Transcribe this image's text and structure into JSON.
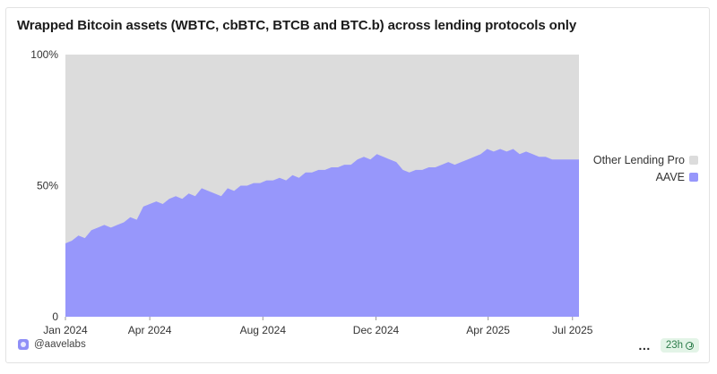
{
  "chart_data": {
    "type": "area",
    "stacking": "percent",
    "title": "Wrapped Bitcoin assets (WBTC, cbBTC, BTCB and BTC.b) across lending protocols only",
    "xlabel": "",
    "ylabel": "",
    "x_ticks": [
      "Jan 2024",
      "Apr 2024",
      "Aug 2024",
      "Dec 2024",
      "Apr 2025",
      "Jul 2025"
    ],
    "x_tick_dates": [
      "2024-01-01",
      "2024-04-01",
      "2024-08-01",
      "2024-12-01",
      "2025-04-01",
      "2025-07-01"
    ],
    "x_range": [
      "2024-01-01",
      "2025-07-08"
    ],
    "y_ticks": [
      "0",
      "50%",
      "100%"
    ],
    "y_tick_values": [
      0,
      50,
      100
    ],
    "ylim": [
      0,
      100
    ],
    "grid": false,
    "legend_position": "right",
    "colors": {
      "AAVE": "#9797fb",
      "Other Lending Pro": "#dcdcdc"
    },
    "legend": [
      "Other Lending Pro",
      "AAVE"
    ],
    "x": [
      "2024-01-01",
      "2024-01-08",
      "2024-01-15",
      "2024-01-22",
      "2024-01-29",
      "2024-02-05",
      "2024-02-12",
      "2024-02-19",
      "2024-02-26",
      "2024-03-04",
      "2024-03-11",
      "2024-03-18",
      "2024-03-25",
      "2024-04-01",
      "2024-04-08",
      "2024-04-15",
      "2024-04-22",
      "2024-04-29",
      "2024-05-06",
      "2024-05-13",
      "2024-05-20",
      "2024-05-27",
      "2024-06-03",
      "2024-06-10",
      "2024-06-17",
      "2024-06-24",
      "2024-07-01",
      "2024-07-08",
      "2024-07-15",
      "2024-07-22",
      "2024-07-29",
      "2024-08-05",
      "2024-08-12",
      "2024-08-19",
      "2024-08-26",
      "2024-09-02",
      "2024-09-09",
      "2024-09-16",
      "2024-09-23",
      "2024-09-30",
      "2024-10-07",
      "2024-10-14",
      "2024-10-21",
      "2024-10-28",
      "2024-11-04",
      "2024-11-11",
      "2024-11-18",
      "2024-11-25",
      "2024-12-02",
      "2024-12-09",
      "2024-12-16",
      "2024-12-23",
      "2024-12-30",
      "2025-01-06",
      "2025-01-13",
      "2025-01-20",
      "2025-01-27",
      "2025-02-03",
      "2025-02-10",
      "2025-02-17",
      "2025-02-24",
      "2025-03-03",
      "2025-03-10",
      "2025-03-17",
      "2025-03-24",
      "2025-03-31",
      "2025-04-07",
      "2025-04-14",
      "2025-04-21",
      "2025-04-28",
      "2025-05-05",
      "2025-05-12",
      "2025-05-19",
      "2025-05-26",
      "2025-06-02",
      "2025-06-09",
      "2025-06-16",
      "2025-06-23",
      "2025-06-30",
      "2025-07-07"
    ],
    "series": [
      {
        "name": "AAVE",
        "values": [
          28,
          29,
          31,
          30,
          33,
          34,
          35,
          34,
          35,
          36,
          38,
          37,
          42,
          43,
          44,
          43,
          45,
          46,
          45,
          47,
          46,
          49,
          48,
          47,
          46,
          49,
          48,
          50,
          50,
          51,
          51,
          52,
          52,
          53,
          52,
          54,
          53,
          55,
          55,
          56,
          56,
          57,
          57,
          58,
          58,
          60,
          61,
          60,
          62,
          61,
          60,
          59,
          56,
          55,
          56,
          56,
          57,
          57,
          58,
          59,
          58,
          59,
          60,
          61,
          62,
          64,
          63,
          64,
          63,
          64,
          62,
          63,
          62,
          61,
          61,
          60,
          60,
          60,
          60,
          60
        ]
      },
      {
        "name": "Other Lending Pro",
        "values": [
          72,
          71,
          69,
          70,
          67,
          66,
          65,
          66,
          65,
          64,
          62,
          63,
          58,
          57,
          56,
          57,
          55,
          54,
          55,
          53,
          54,
          51,
          52,
          53,
          54,
          51,
          52,
          50,
          50,
          49,
          49,
          48,
          48,
          47,
          48,
          46,
          47,
          45,
          45,
          44,
          44,
          43,
          43,
          42,
          42,
          40,
          39,
          40,
          38,
          39,
          40,
          41,
          44,
          45,
          44,
          44,
          43,
          43,
          42,
          41,
          42,
          41,
          40,
          39,
          38,
          36,
          37,
          36,
          37,
          36,
          38,
          37,
          38,
          39,
          39,
          40,
          40,
          40,
          40,
          40
        ]
      }
    ]
  },
  "footer": {
    "creator": "@aavelabs",
    "more": "…",
    "refresh": "23h",
    "accent": "#8f8ff7",
    "refresh_color": "#2e7d4c"
  }
}
